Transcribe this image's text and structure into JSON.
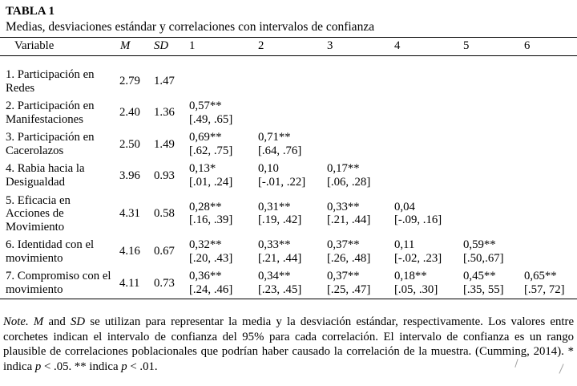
{
  "title": "TABLA 1",
  "subtitle": "Medias, desviaciones estándar y correlaciones con intervalos de confianza",
  "table": {
    "headers": [
      "Variable",
      "M",
      "SD",
      "1",
      "2",
      "3",
      "4",
      "5",
      "6"
    ],
    "rows": [
      {
        "label": "1. Participación en Redes",
        "m": "2.79",
        "sd": "1.47",
        "cells": [
          null,
          null,
          null,
          null,
          null,
          null
        ]
      },
      {
        "label": "2. Participación en Manifestaciones",
        "m": "2.40",
        "sd": "1.36",
        "cells": [
          {
            "v": "0,57**",
            "ci": "[.49, .65]"
          },
          null,
          null,
          null,
          null,
          null
        ]
      },
      {
        "label": "3. Participación en Cacerolazos",
        "m": "2.50",
        "sd": "1.49",
        "cells": [
          {
            "v": "0,69**",
            "ci": "[.62, .75]"
          },
          {
            "v": "0,71**",
            "ci": "[.64, .76]"
          },
          null,
          null,
          null,
          null
        ]
      },
      {
        "label": "4. Rabia hacia la Desigualdad",
        "m": "3.96",
        "sd": "0.93",
        "cells": [
          {
            "v": "0,13*",
            "ci": "[.01, .24]"
          },
          {
            "v": "0,10",
            "ci": "[-.01, .22]"
          },
          {
            "v": "0,17**",
            "ci": "[.06, .28]"
          },
          null,
          null,
          null
        ]
      },
      {
        "label": "5. Eficacia en Acciones de Movimiento",
        "m": "4.31",
        "sd": "0.58",
        "cells": [
          {
            "v": "0,28**",
            "ci": "[.16, .39]"
          },
          {
            "v": "0,31**",
            "ci": "[.19, .42]"
          },
          {
            "v": "0,33**",
            "ci": "[.21, .44]"
          },
          {
            "v": "0,04",
            "ci": "[-.09, .16]"
          },
          null,
          null
        ]
      },
      {
        "label": "6. Identidad con el movimiento",
        "m": "4.16",
        "sd": "0.67",
        "cells": [
          {
            "v": "0,32**",
            "ci": "[.20, .43]"
          },
          {
            "v": "0,33**",
            "ci": "[.21, .44]"
          },
          {
            "v": "0,37**",
            "ci": "[.26, .48]"
          },
          {
            "v": "0,11",
            "ci": "[-.02, .23]"
          },
          {
            "v": "0,59**",
            "ci": "[.50,.67]"
          },
          null
        ]
      },
      {
        "label": "7. Compromiso con el movimiento",
        "m": "4.11",
        "sd": "0.73",
        "cells": [
          {
            "v": "0,36**",
            "ci": "[.24, .46]"
          },
          {
            "v": "0,34**",
            "ci": "[.23, .45]"
          },
          {
            "v": "0,37**",
            "ci": "[.25, .47]"
          },
          {
            "v": "0,18**",
            "ci": "[.05, .30]"
          },
          {
            "v": "0,45**",
            "ci": "[.35, 55]"
          },
          {
            "v": "0,65**",
            "ci": "[.57, 72]"
          }
        ]
      }
    ]
  },
  "note": {
    "segments": [
      {
        "t": "Note.",
        "i": true
      },
      {
        "t": " ",
        "i": false
      },
      {
        "t": "M",
        "i": true
      },
      {
        "t": " and ",
        "i": false
      },
      {
        "t": "SD",
        "i": true
      },
      {
        "t": " se utilizan para representar la media y la desviación estándar, respectivamente. Los valores entre corchetes indican el intervalo de confianza del 95% para cada correlación. El intervalo de confianza es un rango plausible de correlaciones poblacionales que podrían haber causado la correlación de la muestra. (Cumming, 2014). * indica ",
        "i": false
      },
      {
        "t": "p",
        "i": true
      },
      {
        "t": " < .05. ** indica ",
        "i": false
      },
      {
        "t": "p",
        "i": true
      },
      {
        "t": " < .01.",
        "i": false
      }
    ]
  }
}
